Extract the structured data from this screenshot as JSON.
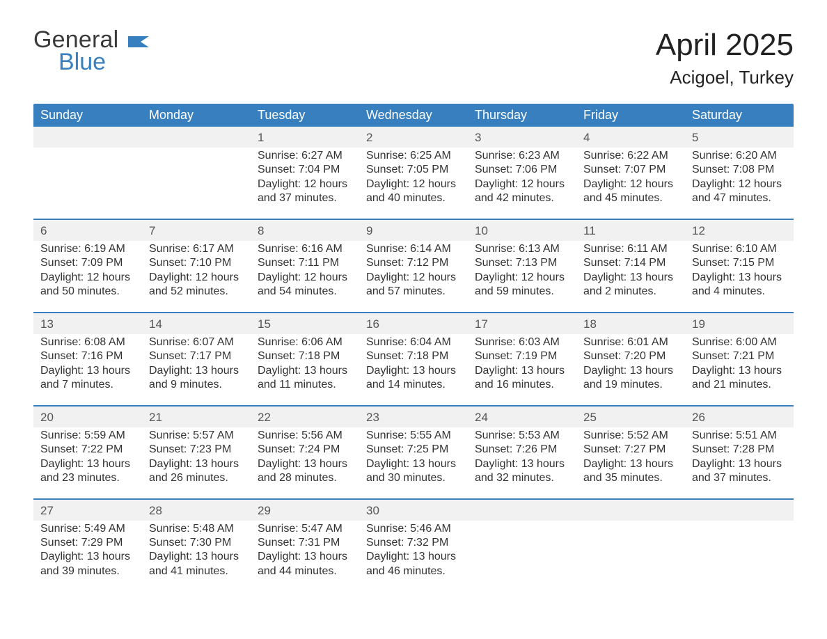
{
  "brand": {
    "name_main": "General",
    "name_accent": "Blue",
    "main_color": "#3a3a3a",
    "accent_color": "#377fbf"
  },
  "header": {
    "month_title": "April 2025",
    "location": "Acigoel, Turkey"
  },
  "styling": {
    "header_bg": "#377fbf",
    "header_text": "#ffffff",
    "daynum_bg": "#f1f1f1",
    "rule_color": "#377fbf",
    "body_text": "#333333",
    "font_family": "Segoe UI, Arial, sans-serif",
    "title_fontsize": 44,
    "location_fontsize": 26,
    "dow_fontsize": 18,
    "cell_fontsize": 16
  },
  "days_of_week": [
    "Sunday",
    "Monday",
    "Tuesday",
    "Wednesday",
    "Thursday",
    "Friday",
    "Saturday"
  ],
  "weeks": [
    {
      "days": [
        {
          "num": "",
          "sunrise": "",
          "sunset": "",
          "daylight": ""
        },
        {
          "num": "",
          "sunrise": "",
          "sunset": "",
          "daylight": ""
        },
        {
          "num": "1",
          "sunrise": "Sunrise: 6:27 AM",
          "sunset": "Sunset: 7:04 PM",
          "daylight": "Daylight: 12 hours and 37 minutes."
        },
        {
          "num": "2",
          "sunrise": "Sunrise: 6:25 AM",
          "sunset": "Sunset: 7:05 PM",
          "daylight": "Daylight: 12 hours and 40 minutes."
        },
        {
          "num": "3",
          "sunrise": "Sunrise: 6:23 AM",
          "sunset": "Sunset: 7:06 PM",
          "daylight": "Daylight: 12 hours and 42 minutes."
        },
        {
          "num": "4",
          "sunrise": "Sunrise: 6:22 AM",
          "sunset": "Sunset: 7:07 PM",
          "daylight": "Daylight: 12 hours and 45 minutes."
        },
        {
          "num": "5",
          "sunrise": "Sunrise: 6:20 AM",
          "sunset": "Sunset: 7:08 PM",
          "daylight": "Daylight: 12 hours and 47 minutes."
        }
      ]
    },
    {
      "days": [
        {
          "num": "6",
          "sunrise": "Sunrise: 6:19 AM",
          "sunset": "Sunset: 7:09 PM",
          "daylight": "Daylight: 12 hours and 50 minutes."
        },
        {
          "num": "7",
          "sunrise": "Sunrise: 6:17 AM",
          "sunset": "Sunset: 7:10 PM",
          "daylight": "Daylight: 12 hours and 52 minutes."
        },
        {
          "num": "8",
          "sunrise": "Sunrise: 6:16 AM",
          "sunset": "Sunset: 7:11 PM",
          "daylight": "Daylight: 12 hours and 54 minutes."
        },
        {
          "num": "9",
          "sunrise": "Sunrise: 6:14 AM",
          "sunset": "Sunset: 7:12 PM",
          "daylight": "Daylight: 12 hours and 57 minutes."
        },
        {
          "num": "10",
          "sunrise": "Sunrise: 6:13 AM",
          "sunset": "Sunset: 7:13 PM",
          "daylight": "Daylight: 12 hours and 59 minutes."
        },
        {
          "num": "11",
          "sunrise": "Sunrise: 6:11 AM",
          "sunset": "Sunset: 7:14 PM",
          "daylight": "Daylight: 13 hours and 2 minutes."
        },
        {
          "num": "12",
          "sunrise": "Sunrise: 6:10 AM",
          "sunset": "Sunset: 7:15 PM",
          "daylight": "Daylight: 13 hours and 4 minutes."
        }
      ]
    },
    {
      "days": [
        {
          "num": "13",
          "sunrise": "Sunrise: 6:08 AM",
          "sunset": "Sunset: 7:16 PM",
          "daylight": "Daylight: 13 hours and 7 minutes."
        },
        {
          "num": "14",
          "sunrise": "Sunrise: 6:07 AM",
          "sunset": "Sunset: 7:17 PM",
          "daylight": "Daylight: 13 hours and 9 minutes."
        },
        {
          "num": "15",
          "sunrise": "Sunrise: 6:06 AM",
          "sunset": "Sunset: 7:18 PM",
          "daylight": "Daylight: 13 hours and 11 minutes."
        },
        {
          "num": "16",
          "sunrise": "Sunrise: 6:04 AM",
          "sunset": "Sunset: 7:18 PM",
          "daylight": "Daylight: 13 hours and 14 minutes."
        },
        {
          "num": "17",
          "sunrise": "Sunrise: 6:03 AM",
          "sunset": "Sunset: 7:19 PM",
          "daylight": "Daylight: 13 hours and 16 minutes."
        },
        {
          "num": "18",
          "sunrise": "Sunrise: 6:01 AM",
          "sunset": "Sunset: 7:20 PM",
          "daylight": "Daylight: 13 hours and 19 minutes."
        },
        {
          "num": "19",
          "sunrise": "Sunrise: 6:00 AM",
          "sunset": "Sunset: 7:21 PM",
          "daylight": "Daylight: 13 hours and 21 minutes."
        }
      ]
    },
    {
      "days": [
        {
          "num": "20",
          "sunrise": "Sunrise: 5:59 AM",
          "sunset": "Sunset: 7:22 PM",
          "daylight": "Daylight: 13 hours and 23 minutes."
        },
        {
          "num": "21",
          "sunrise": "Sunrise: 5:57 AM",
          "sunset": "Sunset: 7:23 PM",
          "daylight": "Daylight: 13 hours and 26 minutes."
        },
        {
          "num": "22",
          "sunrise": "Sunrise: 5:56 AM",
          "sunset": "Sunset: 7:24 PM",
          "daylight": "Daylight: 13 hours and 28 minutes."
        },
        {
          "num": "23",
          "sunrise": "Sunrise: 5:55 AM",
          "sunset": "Sunset: 7:25 PM",
          "daylight": "Daylight: 13 hours and 30 minutes."
        },
        {
          "num": "24",
          "sunrise": "Sunrise: 5:53 AM",
          "sunset": "Sunset: 7:26 PM",
          "daylight": "Daylight: 13 hours and 32 minutes."
        },
        {
          "num": "25",
          "sunrise": "Sunrise: 5:52 AM",
          "sunset": "Sunset: 7:27 PM",
          "daylight": "Daylight: 13 hours and 35 minutes."
        },
        {
          "num": "26",
          "sunrise": "Sunrise: 5:51 AM",
          "sunset": "Sunset: 7:28 PM",
          "daylight": "Daylight: 13 hours and 37 minutes."
        }
      ]
    },
    {
      "days": [
        {
          "num": "27",
          "sunrise": "Sunrise: 5:49 AM",
          "sunset": "Sunset: 7:29 PM",
          "daylight": "Daylight: 13 hours and 39 minutes."
        },
        {
          "num": "28",
          "sunrise": "Sunrise: 5:48 AM",
          "sunset": "Sunset: 7:30 PM",
          "daylight": "Daylight: 13 hours and 41 minutes."
        },
        {
          "num": "29",
          "sunrise": "Sunrise: 5:47 AM",
          "sunset": "Sunset: 7:31 PM",
          "daylight": "Daylight: 13 hours and 44 minutes."
        },
        {
          "num": "30",
          "sunrise": "Sunrise: 5:46 AM",
          "sunset": "Sunset: 7:32 PM",
          "daylight": "Daylight: 13 hours and 46 minutes."
        },
        {
          "num": "",
          "sunrise": "",
          "sunset": "",
          "daylight": ""
        },
        {
          "num": "",
          "sunrise": "",
          "sunset": "",
          "daylight": ""
        },
        {
          "num": "",
          "sunrise": "",
          "sunset": "",
          "daylight": ""
        }
      ]
    }
  ]
}
